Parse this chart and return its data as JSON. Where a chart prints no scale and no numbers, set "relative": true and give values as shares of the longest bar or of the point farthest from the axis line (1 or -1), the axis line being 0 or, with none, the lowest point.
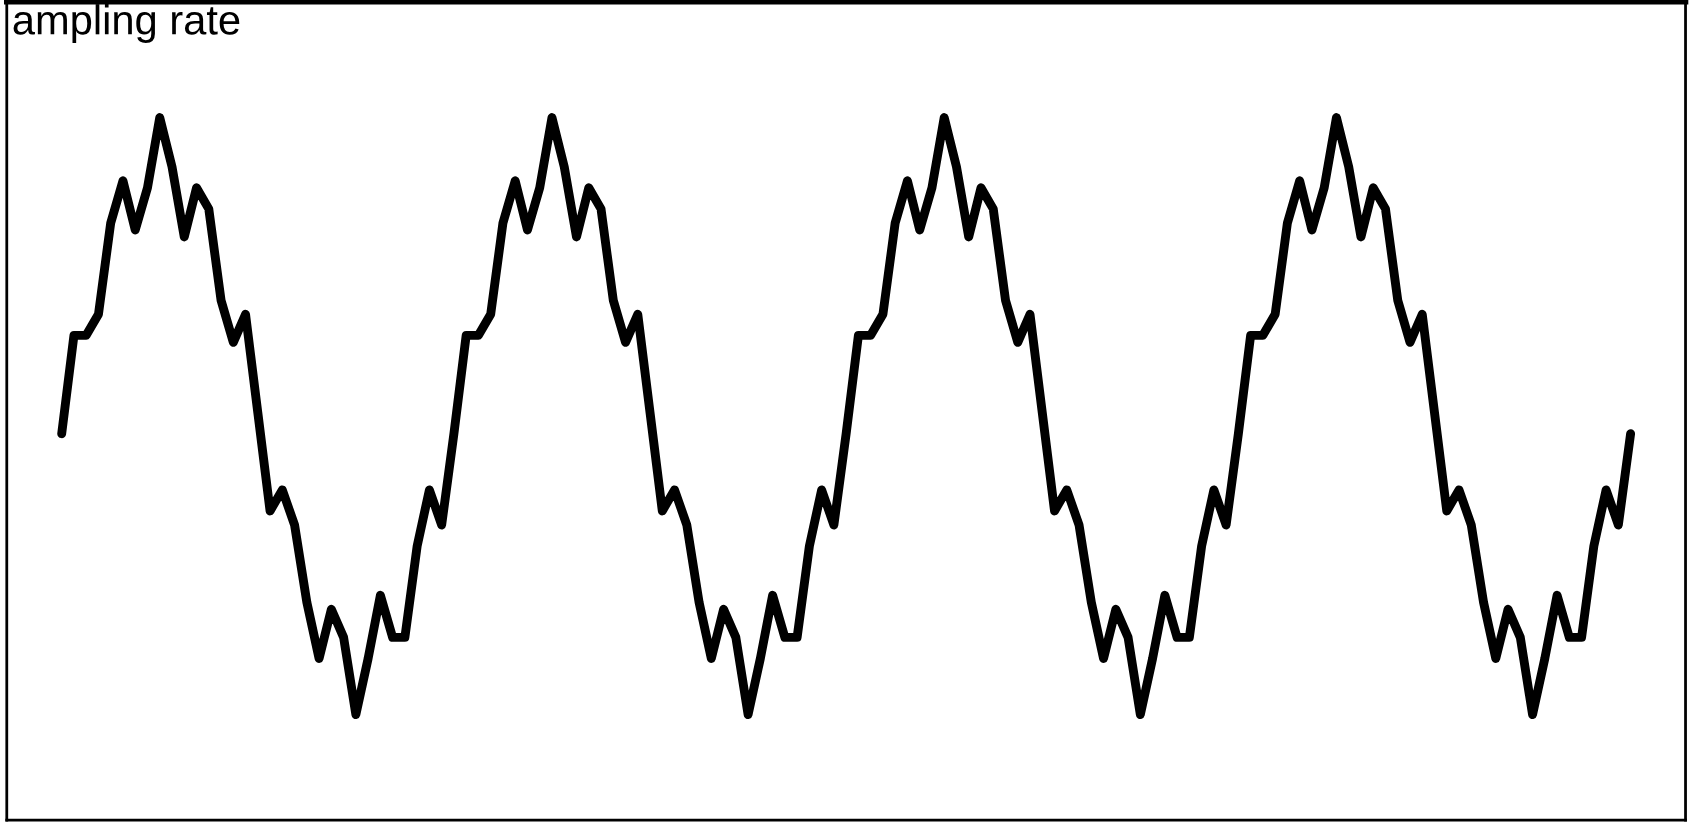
{
  "chart_data": {
    "type": "line",
    "title": "ampling rate",
    "relative": true,
    "grid": false,
    "legend": false,
    "marker": "none",
    "line_style": "solid",
    "categories": [
      null,
      null,
      null,
      null,
      null,
      null,
      null,
      null,
      null,
      null,
      null,
      null,
      null,
      null,
      null,
      null,
      null,
      null,
      null,
      null,
      null,
      null,
      null,
      null,
      null,
      null,
      null,
      null,
      null,
      null,
      null,
      null,
      null,
      null,
      null,
      null,
      null,
      null,
      null,
      null,
      null,
      null,
      null,
      null,
      null,
      null,
      null,
      null,
      null,
      null,
      null,
      null,
      null,
      null,
      null,
      null,
      null,
      null,
      null,
      null,
      null,
      null,
      null,
      null,
      null,
      null,
      null,
      null,
      null,
      null,
      null,
      null,
      null,
      null,
      null,
      null,
      null,
      null,
      null,
      null,
      null,
      null,
      null,
      null,
      null,
      null,
      null,
      null,
      null,
      null,
      null,
      null,
      null,
      null,
      null,
      null,
      null,
      null,
      null,
      null,
      null,
      null,
      null,
      null,
      null,
      null,
      null,
      null,
      null,
      null,
      null,
      null,
      null,
      null,
      null,
      null,
      null,
      null,
      null,
      null,
      null,
      null,
      null,
      null,
      null,
      null,
      null,
      null,
      null
    ],
    "series": [
      {
        "color": "#000000",
        "values": [
          0.55,
          0.69,
          0.69,
          0.72,
          0.85,
          0.91,
          0.84,
          0.9,
          1.0,
          0.93,
          0.83,
          0.9,
          0.87,
          0.74,
          0.68,
          0.72,
          0.58,
          0.44,
          0.47,
          0.42,
          0.31,
          0.23,
          0.3,
          0.26,
          0.15,
          0.23,
          0.32,
          0.26,
          0.26,
          0.39,
          0.47,
          0.42,
          0.55,
          0.69,
          0.69,
          0.72,
          0.85,
          0.91,
          0.84,
          0.9,
          1.0,
          0.93,
          0.83,
          0.9,
          0.87,
          0.74,
          0.68,
          0.72,
          0.58,
          0.44,
          0.47,
          0.42,
          0.31,
          0.23,
          0.3,
          0.26,
          0.15,
          0.23,
          0.32,
          0.26,
          0.26,
          0.39,
          0.47,
          0.42,
          0.55,
          0.69,
          0.69,
          0.72,
          0.85,
          0.91,
          0.84,
          0.9,
          1.0,
          0.93,
          0.83,
          0.9,
          0.87,
          0.74,
          0.68,
          0.72,
          0.58,
          0.44,
          0.47,
          0.42,
          0.31,
          0.23,
          0.3,
          0.26,
          0.15,
          0.23,
          0.32,
          0.26,
          0.26,
          0.39,
          0.47,
          0.42,
          0.55,
          0.69,
          0.69,
          0.72,
          0.85,
          0.91,
          0.84,
          0.9,
          1.0,
          0.93,
          0.83,
          0.9,
          0.87,
          0.74,
          0.68,
          0.72,
          0.58,
          0.44,
          0.47,
          0.42,
          0.31,
          0.23,
          0.3,
          0.26,
          0.15,
          0.23,
          0.32,
          0.26,
          0.26,
          0.39,
          0.47,
          0.42,
          0.55
        ]
      }
    ]
  }
}
